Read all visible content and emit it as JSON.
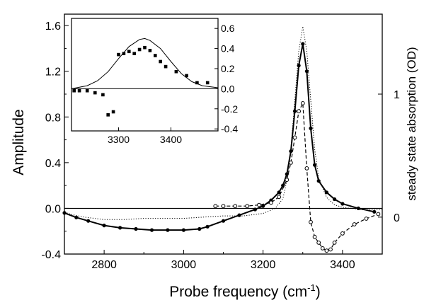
{
  "chart_data": [
    {
      "type": "line",
      "title": "",
      "xlabel": "Probe frequency (cm",
      "xlabel_sup": "-1",
      "xlabel_suffix": ")",
      "ylabel": "Amplitude",
      "ylabel_right": "steady state absorption (OD)",
      "xlim": [
        2700,
        3500
      ],
      "ylim": [
        -0.4,
        1.7
      ],
      "ylim_right": [
        -0.3,
        1.65
      ],
      "x_ticks": [
        "2800",
        "3000",
        "3200",
        "3400"
      ],
      "y_ticks": [
        "-0.4",
        "0.0",
        "0.4",
        "0.8",
        "1.2",
        "1.6"
      ],
      "y_ticks_right": [
        "0",
        "1"
      ],
      "series": [
        {
          "style": "dotted-line",
          "axis": "right",
          "x": [
            2700,
            2720,
            2750,
            2800,
            2850,
            2900,
            2950,
            3000,
            3050,
            3100,
            3150,
            3200,
            3230,
            3250,
            3260,
            3270,
            3280,
            3290,
            3300,
            3310,
            3320,
            3330,
            3340,
            3360,
            3380,
            3400,
            3450,
            3500
          ],
          "values": [
            0.04,
            0.02,
            0.0,
            -0.02,
            -0.02,
            -0.01,
            -0.01,
            -0.01,
            0.0,
            0.01,
            0.01,
            0.03,
            0.07,
            0.15,
            0.3,
            0.55,
            0.95,
            1.35,
            1.55,
            1.35,
            0.95,
            0.55,
            0.32,
            0.16,
            0.1,
            0.08,
            0.06,
            0.06
          ]
        },
        {
          "style": "solid-line-filled-circles",
          "axis": "left",
          "x": [
            2700,
            2730,
            2760,
            2800,
            2840,
            2880,
            2920,
            2960,
            3000,
            3040,
            3060,
            3100,
            3140,
            3180,
            3200,
            3220,
            3240,
            3250,
            3260,
            3270,
            3280,
            3290,
            3300,
            3310,
            3320,
            3330,
            3340,
            3360,
            3380,
            3400,
            3440,
            3480
          ],
          "values": [
            -0.04,
            -0.08,
            -0.11,
            -0.15,
            -0.17,
            -0.18,
            -0.19,
            -0.19,
            -0.19,
            -0.18,
            -0.16,
            -0.11,
            -0.06,
            -0.01,
            0.02,
            0.07,
            0.14,
            0.2,
            0.3,
            0.5,
            0.85,
            1.25,
            1.44,
            1.2,
            0.7,
            0.38,
            0.24,
            0.14,
            0.08,
            0.04,
            0.0,
            -0.03
          ]
        },
        {
          "style": "dashed-line-open-circles",
          "axis": "left",
          "x": [
            3080,
            3100,
            3130,
            3160,
            3190,
            3220,
            3240,
            3260,
            3270,
            3280,
            3290,
            3300,
            3310,
            3320,
            3330,
            3340,
            3350,
            3360,
            3370,
            3380,
            3400,
            3430,
            3460,
            3490
          ],
          "values": [
            0.02,
            0.02,
            0.02,
            0.02,
            0.03,
            0.05,
            0.1,
            0.25,
            0.4,
            0.62,
            0.85,
            0.92,
            0.35,
            -0.12,
            -0.25,
            -0.3,
            -0.35,
            -0.37,
            -0.36,
            -0.3,
            -0.22,
            -0.14,
            -0.09,
            -0.05
          ]
        }
      ]
    },
    {
      "type": "scatter",
      "title": "",
      "xlim": [
        3210,
        3490
      ],
      "ylim": [
        -0.42,
        0.7
      ],
      "x_ticks": [
        "3300",
        "3400"
      ],
      "y_ticks": [
        "0.6",
        "0.4",
        "0.2",
        "0.0",
        "-0.2",
        "-0.4"
      ],
      "series": [
        {
          "style": "solid-line",
          "x": [
            3210,
            3240,
            3260,
            3280,
            3300,
            3320,
            3340,
            3350,
            3360,
            3380,
            3400,
            3420,
            3440,
            3460,
            3490
          ],
          "values": [
            0.0,
            0.03,
            0.08,
            0.17,
            0.3,
            0.42,
            0.49,
            0.5,
            0.48,
            0.4,
            0.27,
            0.15,
            0.07,
            0.03,
            0.01
          ]
        },
        {
          "style": "filled-squares",
          "x": [
            3215,
            3225,
            3240,
            3255,
            3270,
            3280,
            3290,
            3300,
            3310,
            3320,
            3330,
            3340,
            3350,
            3360,
            3370,
            3380,
            3390,
            3410,
            3430,
            3450,
            3470
          ],
          "values": [
            -0.02,
            -0.02,
            -0.02,
            -0.04,
            -0.06,
            -0.26,
            -0.23,
            0.34,
            0.35,
            0.37,
            0.35,
            0.39,
            0.41,
            0.38,
            0.33,
            0.27,
            0.22,
            0.17,
            0.13,
            0.06,
            0.06
          ]
        }
      ]
    }
  ]
}
